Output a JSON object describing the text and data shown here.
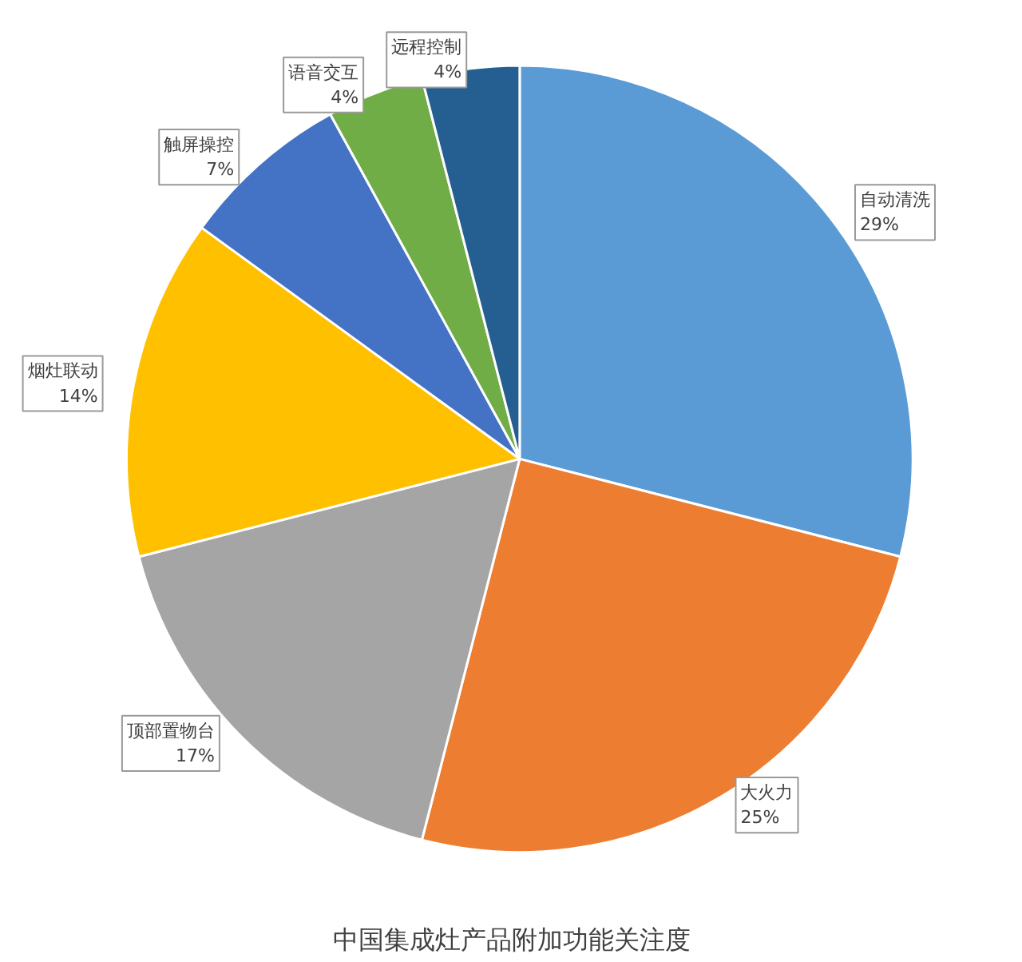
{
  "chart_data": {
    "type": "pie",
    "title": "中国集成灶产品附加功能关注度",
    "categories": [
      "自动清洗",
      "大火力",
      "顶部置物台",
      "烟灶联动",
      "触屏操控",
      "语音交互",
      "远程控制"
    ],
    "values": [
      29,
      25,
      17,
      14,
      7,
      4,
      4
    ],
    "value_labels": [
      "29%",
      "25%",
      "17%",
      "14%",
      "7%",
      "4%",
      "4%"
    ],
    "colors": [
      "#5b9bd5",
      "#ed7d31",
      "#a5a5a5",
      "#ffc000",
      "#4472c4",
      "#70ad47",
      "#255e91"
    ],
    "legend": false
  }
}
